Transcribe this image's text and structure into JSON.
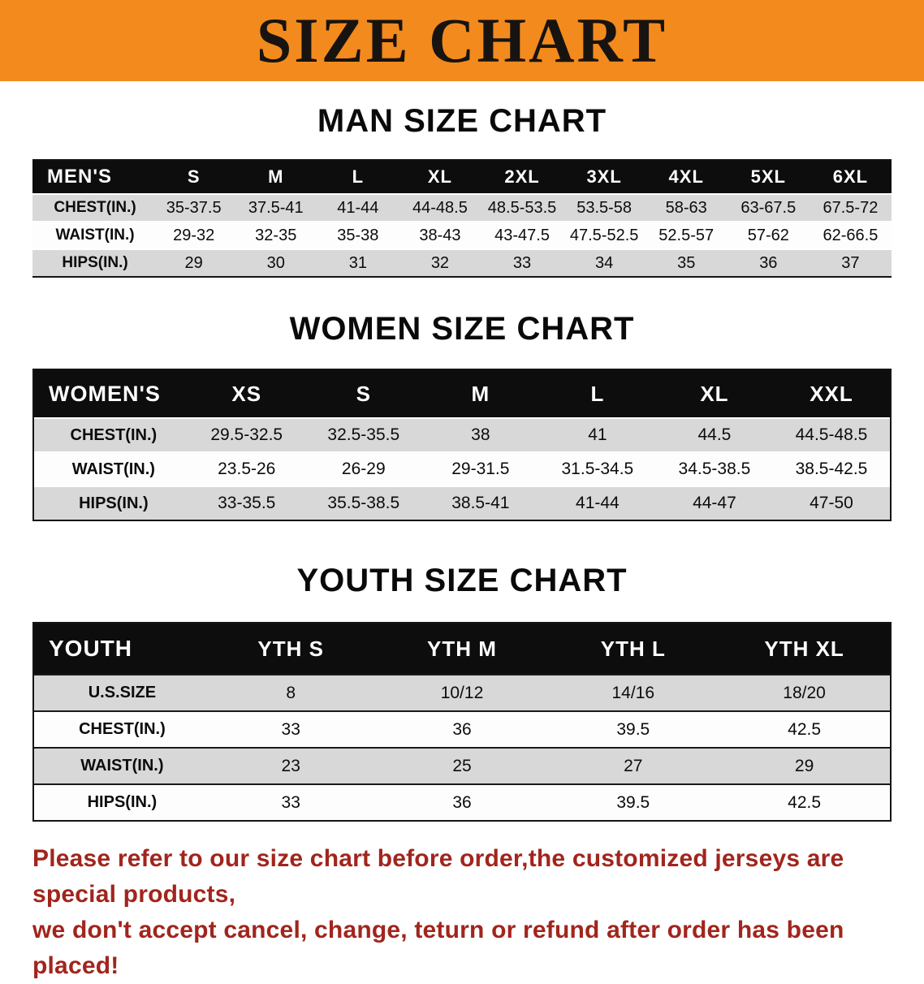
{
  "banner": {
    "title": "SIZE CHART",
    "bg_color": "#F28A1E"
  },
  "sections": [
    {
      "id": "men",
      "heading": "MAN SIZE CHART",
      "table": {
        "label": "MEN'S",
        "columns": [
          "S",
          "M",
          "L",
          "XL",
          "2XL",
          "3XL",
          "4XL",
          "5XL",
          "6XL"
        ],
        "rows": [
          {
            "label": "CHEST(IN.)",
            "values": [
              "35-37.5",
              "37.5-41",
              "41-44",
              "44-48.5",
              "48.5-53.5",
              "53.5-58",
              "58-63",
              "63-67.5",
              "67.5-72"
            ]
          },
          {
            "label": "WAIST(IN.)",
            "values": [
              "29-32",
              "32-35",
              "35-38",
              "38-43",
              "43-47.5",
              "47.5-52.5",
              "52.5-57",
              "57-62",
              "62-66.5"
            ]
          },
          {
            "label": "HIPS(IN.)",
            "values": [
              "29",
              "30",
              "31",
              "32",
              "33",
              "34",
              "35",
              "36",
              "37"
            ]
          }
        ]
      }
    },
    {
      "id": "women",
      "heading": "WOMEN SIZE CHART",
      "table": {
        "label": "WOMEN'S",
        "columns": [
          "XS",
          "S",
          "M",
          "L",
          "XL",
          "XXL"
        ],
        "rows": [
          {
            "label": "CHEST(IN.)",
            "values": [
              "29.5-32.5",
              "32.5-35.5",
              "38",
              "41",
              "44.5",
              "44.5-48.5"
            ]
          },
          {
            "label": "WAIST(IN.)",
            "values": [
              "23.5-26",
              "26-29",
              "29-31.5",
              "31.5-34.5",
              "34.5-38.5",
              "38.5-42.5"
            ]
          },
          {
            "label": "HIPS(IN.)",
            "values": [
              "33-35.5",
              "35.5-38.5",
              "38.5-41",
              "41-44",
              "44-47",
              "47-50"
            ]
          }
        ]
      }
    },
    {
      "id": "youth",
      "heading": "YOUTH SIZE CHART",
      "table": {
        "label": "YOUTH",
        "columns": [
          "YTH S",
          "YTH M",
          "YTH L",
          "YTH XL"
        ],
        "rows": [
          {
            "label": "U.S.SIZE",
            "values": [
              "8",
              "10/12",
              "14/16",
              "18/20"
            ]
          },
          {
            "label": "CHEST(IN.)",
            "values": [
              "33",
              "36",
              "39.5",
              "42.5"
            ]
          },
          {
            "label": "WAIST(IN.)",
            "values": [
              "23",
              "25",
              "27",
              "29"
            ]
          },
          {
            "label": "HIPS(IN.)",
            "values": [
              "33",
              "36",
              "39.5",
              "42.5"
            ]
          }
        ]
      }
    }
  ],
  "footer": {
    "color": "#A1251D",
    "lines": [
      "Please refer to our size chart before order,the customized jerseys are special products,",
      "we don't accept cancel, change, teturn or refund after order has been placed!"
    ]
  }
}
